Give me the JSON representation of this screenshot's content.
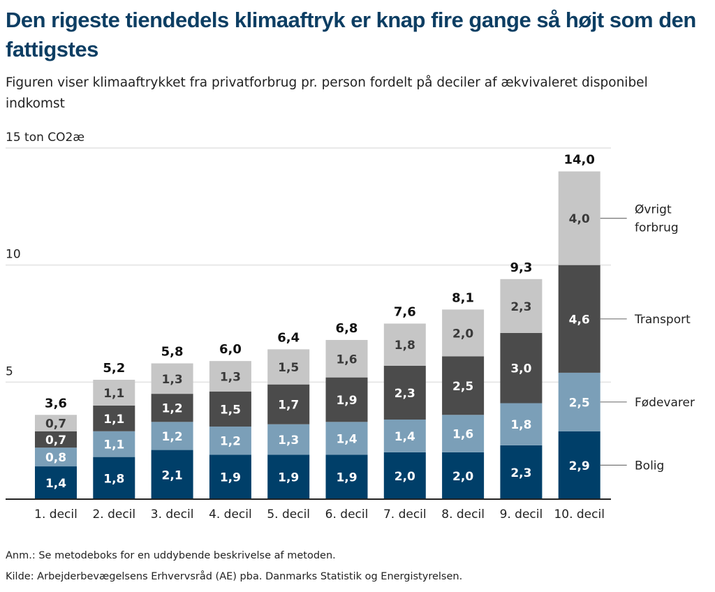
{
  "title": "Den rigeste tiendedels klimaaftryk er knap fire gange så højt som den fattigstes",
  "subtitle": "Figuren viser klimaaftrykket fra privatforbrug pr. person fordelt på deciler af ækvivaleret disponibel indkomst",
  "note": "Anm.: Se metodeboks for en uddybende beskrivelse af metoden.",
  "source": "Kilde: Arbejderbevægelsens Erhvervsråd (AE) pba. Danmarks Statistik og Energistyrelsen.",
  "chart_data": {
    "type": "bar",
    "stacked": true,
    "ylabel": "15 ton CO2æ",
    "ylim": [
      0,
      15
    ],
    "yticks": [
      {
        "value": 15,
        "label": "15 ton CO2æ"
      },
      {
        "value": 10,
        "label": "10"
      },
      {
        "value": 5,
        "label": "5"
      }
    ],
    "grid": true,
    "legend": "right, labels beside last bar",
    "categories": [
      "1. decil",
      "2. decil",
      "3. decil",
      "4. decil",
      "5. decil",
      "6. decil",
      "7. decil",
      "8. decil",
      "9. decil",
      "10. decil"
    ],
    "totals": [
      "3,6",
      "5,2",
      "5,8",
      "6,0",
      "6,4",
      "6,8",
      "7,6",
      "8,1",
      "9,3",
      "14,0"
    ],
    "series": [
      {
        "name": "Bolig",
        "color": "#003f69",
        "label_color": "#ffffff",
        "values": [
          1.4,
          1.8,
          2.1,
          1.9,
          1.9,
          1.9,
          2.0,
          2.0,
          2.3,
          2.9
        ]
      },
      {
        "name": "Fødevarer",
        "color": "#7b9fb8",
        "label_color": "#ffffff",
        "values": [
          0.8,
          1.1,
          1.2,
          1.2,
          1.3,
          1.4,
          1.4,
          1.6,
          1.8,
          2.5
        ]
      },
      {
        "name": "Transport",
        "color": "#4b4b4b",
        "label_color": "#ffffff",
        "values": [
          0.7,
          1.1,
          1.2,
          1.5,
          1.7,
          1.9,
          2.3,
          2.5,
          3.0,
          4.6
        ]
      },
      {
        "name": "Øvrigt forbrug",
        "color": "#c6c6c6",
        "label_color": "#3a3a3a",
        "values": [
          0.7,
          1.1,
          1.3,
          1.3,
          1.5,
          1.6,
          1.8,
          2.0,
          2.3,
          4.0
        ]
      }
    ]
  }
}
